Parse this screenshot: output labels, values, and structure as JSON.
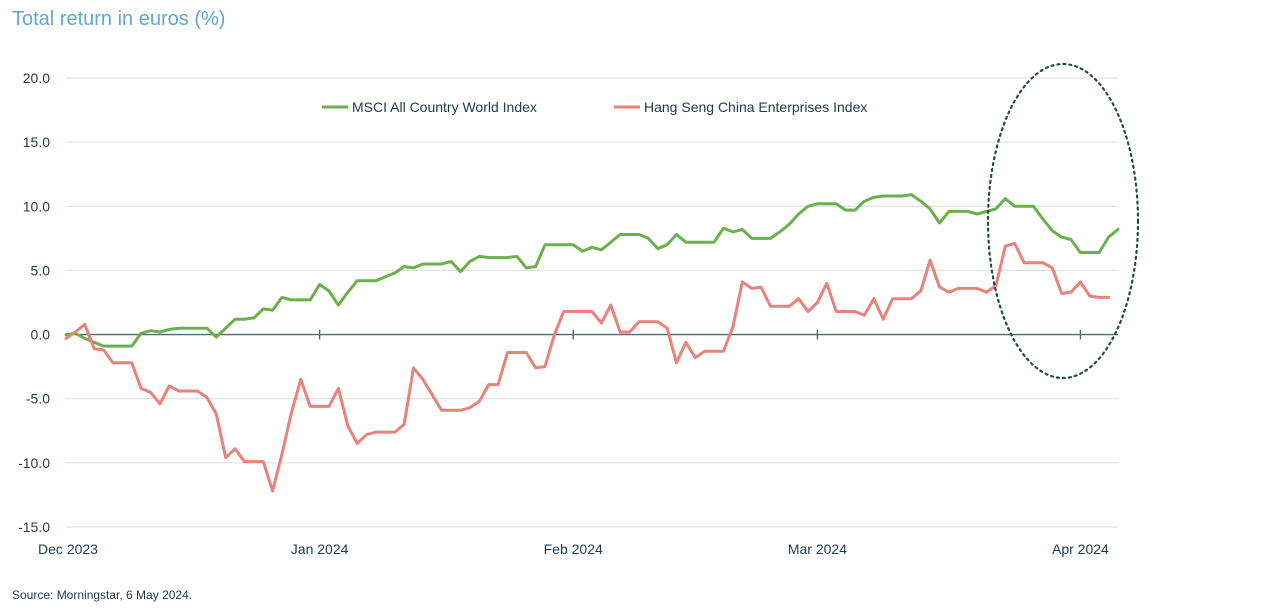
{
  "title": "Total return in euros (%)",
  "source": "Source: Morningstar, 6 May 2024.",
  "chart_data": {
    "type": "line",
    "ylim": [
      -15,
      20
    ],
    "yticks": [
      20.0,
      15.0,
      10.0,
      5.0,
      0.0,
      -5.0,
      -10.0,
      -15.0
    ],
    "ytick_labels": [
      "20.0",
      "15.0",
      "10.0",
      "5.0",
      "0.0",
      "-5.0",
      "-10.0",
      "-15.0"
    ],
    "xlim": [
      0,
      112
    ],
    "xticks": [
      0,
      27,
      54,
      80,
      108
    ],
    "xtick_labels": [
      "Dec 2023",
      "Jan 2024",
      "Feb 2024",
      "Mar 2024",
      "Apr 2024"
    ],
    "grid": true,
    "legend_position": "top-center",
    "series": [
      {
        "name": "MSCI All Country World Index",
        "color": "#6ab04c",
        "points": [
          [
            0,
            0.0
          ],
          [
            1,
            0.1
          ],
          [
            2,
            -0.3
          ],
          [
            3,
            -0.6
          ],
          [
            4,
            -0.9
          ],
          [
            5,
            -0.9
          ],
          [
            6,
            -0.9
          ],
          [
            7,
            -0.9
          ],
          [
            8,
            0.1
          ],
          [
            9,
            0.3
          ],
          [
            10,
            0.2
          ],
          [
            11,
            0.4
          ],
          [
            12,
            0.5
          ],
          [
            13,
            0.5
          ],
          [
            14,
            0.5
          ],
          [
            15,
            0.5
          ],
          [
            16,
            -0.2
          ],
          [
            17,
            0.5
          ],
          [
            18,
            1.2
          ],
          [
            19,
            1.2
          ],
          [
            20,
            1.3
          ],
          [
            21,
            2.0
          ],
          [
            22,
            1.9
          ],
          [
            23,
            2.9
          ],
          [
            24,
            2.7
          ],
          [
            25,
            2.7
          ],
          [
            26,
            2.7
          ],
          [
            27,
            3.9
          ],
          [
            28,
            3.4
          ],
          [
            29,
            2.3
          ],
          [
            30,
            3.3
          ],
          [
            31,
            4.2
          ],
          [
            32,
            4.2
          ],
          [
            33,
            4.2
          ],
          [
            34,
            4.5
          ],
          [
            35,
            4.8
          ],
          [
            36,
            5.3
          ],
          [
            37,
            5.2
          ],
          [
            38,
            5.5
          ],
          [
            39,
            5.5
          ],
          [
            40,
            5.5
          ],
          [
            41,
            5.7
          ],
          [
            42,
            4.9
          ],
          [
            43,
            5.7
          ],
          [
            44,
            6.1
          ],
          [
            45,
            6.0
          ],
          [
            46,
            6.0
          ],
          [
            47,
            6.0
          ],
          [
            48,
            6.1
          ],
          [
            49,
            5.2
          ],
          [
            50,
            5.3
          ],
          [
            51,
            7.0
          ],
          [
            52,
            7.0
          ],
          [
            53,
            7.0
          ],
          [
            54,
            7.0
          ],
          [
            55,
            6.5
          ],
          [
            56,
            6.8
          ],
          [
            57,
            6.6
          ],
          [
            58,
            7.2
          ],
          [
            59,
            7.8
          ],
          [
            60,
            7.8
          ],
          [
            61,
            7.8
          ],
          [
            62,
            7.5
          ],
          [
            63,
            6.7
          ],
          [
            64,
            7.0
          ],
          [
            65,
            7.8
          ],
          [
            66,
            7.2
          ],
          [
            67,
            7.2
          ],
          [
            68,
            7.2
          ],
          [
            69,
            7.2
          ],
          [
            70,
            8.3
          ],
          [
            71,
            8.0
          ],
          [
            72,
            8.2
          ],
          [
            73,
            7.5
          ],
          [
            74,
            7.5
          ],
          [
            75,
            7.5
          ],
          [
            76,
            8.0
          ],
          [
            77,
            8.6
          ],
          [
            78,
            9.4
          ],
          [
            79,
            10.0
          ],
          [
            80,
            10.2
          ],
          [
            81,
            10.2
          ],
          [
            82,
            10.2
          ],
          [
            83,
            9.7
          ],
          [
            84,
            9.7
          ],
          [
            85,
            10.4
          ],
          [
            86,
            10.7
          ],
          [
            87,
            10.8
          ],
          [
            88,
            10.8
          ],
          [
            89,
            10.8
          ],
          [
            90,
            10.9
          ],
          [
            91,
            10.4
          ],
          [
            92,
            9.8
          ],
          [
            93,
            8.7
          ],
          [
            94,
            9.6
          ],
          [
            95,
            9.6
          ],
          [
            96,
            9.6
          ],
          [
            97,
            9.4
          ],
          [
            98,
            9.6
          ],
          [
            99,
            9.8
          ],
          [
            100,
            10.6
          ],
          [
            101,
            10.0
          ],
          [
            102,
            10.0
          ],
          [
            103,
            10.0
          ],
          [
            104,
            9.0
          ],
          [
            105,
            8.1
          ],
          [
            106,
            7.6
          ],
          [
            107,
            7.4
          ],
          [
            108,
            6.4
          ],
          [
            109,
            6.4
          ],
          [
            110,
            6.4
          ],
          [
            111,
            7.6
          ],
          [
            112,
            8.2
          ]
        ]
      },
      {
        "name": "Hang Seng China Enterprises Index",
        "color": "#e8827a",
        "points": [
          [
            0,
            -0.3
          ],
          [
            1,
            0.2
          ],
          [
            2,
            0.8
          ],
          [
            3,
            -1.1
          ],
          [
            4,
            -1.2
          ],
          [
            5,
            -2.2
          ],
          [
            6,
            -2.2
          ],
          [
            7,
            -2.2
          ],
          [
            8,
            -4.2
          ],
          [
            9,
            -4.5
          ],
          [
            10,
            -5.4
          ],
          [
            11,
            -4.0
          ],
          [
            12,
            -4.4
          ],
          [
            13,
            -4.4
          ],
          [
            14,
            -4.4
          ],
          [
            15,
            -4.9
          ],
          [
            16,
            -6.2
          ],
          [
            17,
            -9.6
          ],
          [
            18,
            -8.9
          ],
          [
            19,
            -9.9
          ],
          [
            20,
            -9.9
          ],
          [
            21,
            -9.9
          ],
          [
            22,
            -12.2
          ],
          [
            23,
            -9.3
          ],
          [
            24,
            -6.1
          ],
          [
            25,
            -3.5
          ],
          [
            26,
            -5.6
          ],
          [
            27,
            -5.6
          ],
          [
            28,
            -5.6
          ],
          [
            29,
            -4.2
          ],
          [
            30,
            -7.1
          ],
          [
            31,
            -8.5
          ],
          [
            32,
            -7.8
          ],
          [
            33,
            -7.6
          ],
          [
            34,
            -7.6
          ],
          [
            35,
            -7.6
          ],
          [
            36,
            -7.0
          ],
          [
            37,
            -2.6
          ],
          [
            38,
            -3.5
          ],
          [
            39,
            -4.7
          ],
          [
            40,
            -5.9
          ],
          [
            41,
            -5.9
          ],
          [
            42,
            -5.9
          ],
          [
            43,
            -5.7
          ],
          [
            44,
            -5.2
          ],
          [
            45,
            -3.9
          ],
          [
            46,
            -3.9
          ],
          [
            47,
            -1.4
          ],
          [
            48,
            -1.4
          ],
          [
            49,
            -1.4
          ],
          [
            50,
            -2.6
          ],
          [
            51,
            -2.5
          ],
          [
            52,
            0.0
          ],
          [
            53,
            1.8
          ],
          [
            54,
            1.8
          ],
          [
            55,
            1.8
          ],
          [
            56,
            1.8
          ],
          [
            57,
            0.9
          ],
          [
            58,
            2.3
          ],
          [
            59,
            0.2
          ],
          [
            60,
            0.2
          ],
          [
            61,
            1.0
          ],
          [
            62,
            1.0
          ],
          [
            63,
            1.0
          ],
          [
            64,
            0.5
          ],
          [
            65,
            -2.2
          ],
          [
            66,
            -0.6
          ],
          [
            67,
            -1.8
          ],
          [
            68,
            -1.3
          ],
          [
            69,
            -1.3
          ],
          [
            70,
            -1.3
          ],
          [
            71,
            0.6
          ],
          [
            72,
            4.1
          ],
          [
            73,
            3.6
          ],
          [
            74,
            3.7
          ],
          [
            75,
            2.2
          ],
          [
            76,
            2.2
          ],
          [
            77,
            2.2
          ],
          [
            78,
            2.8
          ],
          [
            79,
            1.8
          ],
          [
            80,
            2.5
          ],
          [
            81,
            4.0
          ],
          [
            82,
            1.8
          ],
          [
            83,
            1.8
          ],
          [
            84,
            1.8
          ],
          [
            85,
            1.5
          ],
          [
            86,
            2.8
          ],
          [
            87,
            1.2
          ],
          [
            88,
            2.8
          ],
          [
            89,
            2.8
          ],
          [
            90,
            2.8
          ],
          [
            91,
            3.4
          ],
          [
            92,
            5.8
          ],
          [
            93,
            3.7
          ],
          [
            94,
            3.3
          ],
          [
            95,
            3.6
          ],
          [
            96,
            3.6
          ],
          [
            97,
            3.6
          ],
          [
            98,
            3.3
          ],
          [
            99,
            3.8
          ],
          [
            100,
            6.9
          ],
          [
            101,
            7.1
          ],
          [
            102,
            5.6
          ],
          [
            103,
            5.6
          ],
          [
            104,
            5.6
          ],
          [
            105,
            5.2
          ],
          [
            106,
            3.2
          ],
          [
            107,
            3.3
          ],
          [
            108,
            4.1
          ],
          [
            109,
            3.0
          ],
          [
            110,
            2.9
          ],
          [
            111,
            2.9
          ]
        ]
      }
    ]
  }
}
